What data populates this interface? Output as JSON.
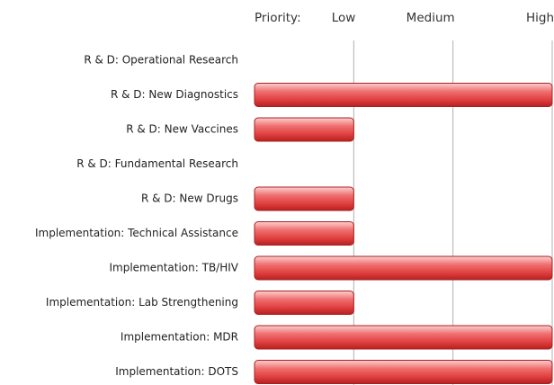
{
  "chart_data": {
    "type": "bar",
    "orientation": "horizontal",
    "x_label": "Priority:",
    "categories": [
      "R & D: Operational Research",
      "R & D: New Diagnostics",
      "R & D: New Vaccines",
      "R & D: Fundamental Research",
      "R & D: New Drugs",
      "Implementation: Technical Assistance",
      "Implementation: TB/HIV",
      "Implementation: Lab Strengthening",
      "Implementation: MDR",
      "Implementation: DOTS"
    ],
    "values": [
      0,
      3,
      1,
      0,
      1,
      1,
      3,
      1,
      3,
      3
    ],
    "color": "#e04848",
    "xlim": [
      0,
      3
    ],
    "xticks": [
      {
        "value": 1,
        "label": "Low"
      },
      {
        "value": 2,
        "label": "Medium"
      },
      {
        "value": 3,
        "label": "High"
      }
    ],
    "grid": true
  }
}
